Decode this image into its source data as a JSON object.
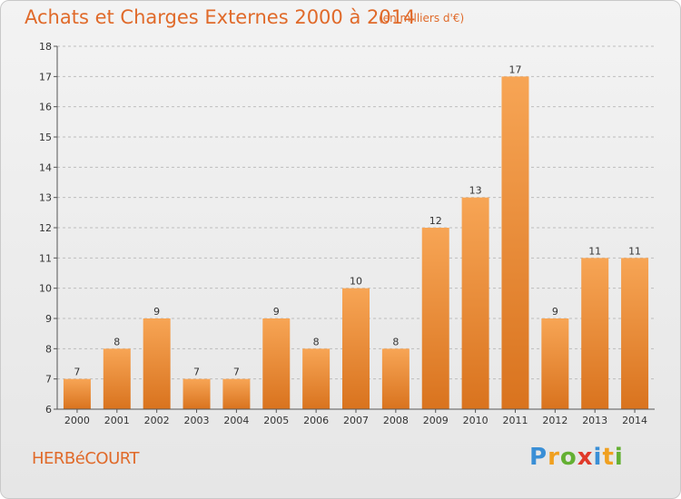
{
  "header": {
    "title": "Achats et Charges Externes 2000 à 2014",
    "subtitle": "(en milliers d'€)"
  },
  "footer": {
    "commune": "HERBéCOURT",
    "logo_text": "Proxiti"
  },
  "colors": {
    "bar_light": "#f7a555",
    "bar_dark": "#d9731e",
    "title": "#e06a2a",
    "grid": "#bdbdbd",
    "axis_text": "#333333"
  },
  "chart_data": {
    "type": "bar",
    "title": "Achats et Charges Externes 2000 à 2014",
    "subtitle": "(en milliers d'€)",
    "categories": [
      "2000",
      "2001",
      "2002",
      "2003",
      "2004",
      "2005",
      "2006",
      "2007",
      "2008",
      "2009",
      "2010",
      "2011",
      "2012",
      "2013",
      "2014"
    ],
    "values": [
      7,
      8,
      9,
      7,
      7,
      9,
      8,
      10,
      8,
      12,
      13,
      17,
      9,
      11,
      11
    ],
    "ylim": [
      6,
      18
    ],
    "yticks": [
      6,
      7,
      8,
      9,
      10,
      11,
      12,
      13,
      14,
      15,
      16,
      17,
      18
    ],
    "xlabel": "",
    "ylabel": "",
    "grid": "horizontal dashed",
    "data_labels": true
  }
}
